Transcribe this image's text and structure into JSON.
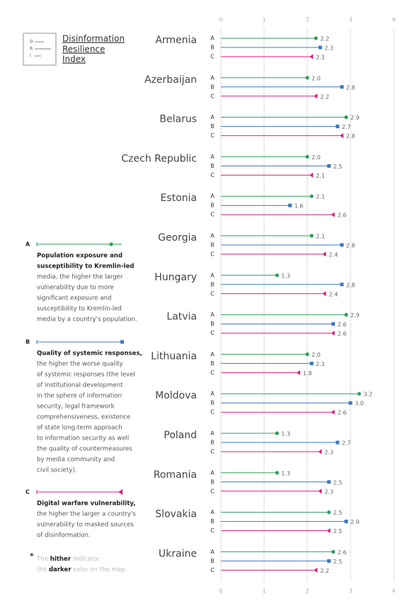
{
  "chart_data": {
    "type": "lollipop",
    "title": [
      "Disinformation",
      "Resilience",
      "Index"
    ],
    "logo_letters": [
      "D",
      "R",
      "I"
    ],
    "xlim": [
      0,
      4
    ],
    "xticks": [
      0,
      1,
      2,
      3,
      4
    ],
    "grid": true,
    "categories": [
      "Armenia",
      "Azerbaijan",
      "Belarus",
      "Czech Republic",
      "Estonia",
      "Georgia",
      "Hungary",
      "Latvia",
      "Lithuania",
      "Moldova",
      "Poland",
      "Romania",
      "Slovakia",
      "Ukraine"
    ],
    "series": [
      {
        "name": "A",
        "color": "#2e9e5b",
        "marker": "circle",
        "values": [
          2.2,
          2.0,
          2.9,
          2.0,
          2.1,
          2.1,
          1.3,
          2.9,
          2.0,
          3.2,
          1.3,
          1.3,
          2.5,
          2.6
        ],
        "value_labels": [
          "2.2",
          "2.0",
          "2.9",
          "2.0",
          "2.1",
          "2.1",
          "1.3",
          "2.9",
          "2.0",
          "3.2",
          "1.3",
          "1.3",
          "2.5",
          "2.6"
        ],
        "description_title": [
          "Population exposure and",
          "susceptibility to Kremlin-led"
        ],
        "description": [
          "media, the higher the larger",
          "vulnerability due to more",
          "significant exposure and",
          "susceptibility to Kremlin-led",
          "media by a country's population."
        ]
      },
      {
        "name": "B",
        "color": "#3a78c2",
        "marker": "square",
        "values": [
          2.3,
          2.8,
          2.7,
          2.5,
          1.6,
          2.8,
          2.8,
          2.6,
          2.1,
          3.0,
          2.7,
          2.5,
          2.9,
          2.5
        ],
        "value_labels": [
          "2.3",
          "2.8",
          "2.7",
          "2.5",
          "1.6",
          "2.8",
          "2.8",
          "2.6",
          "2.1",
          "3.0",
          "2.7",
          "2.5",
          "2.9",
          "2.5"
        ],
        "description_title": [
          "Quality of systemic responses,"
        ],
        "description": [
          "the higher the worse quality",
          "of systemic responses (the level",
          "of institutional development",
          "in the sphere of information",
          "security, legal framework",
          "comprehensiveness, existence",
          "of state long-term approach",
          "to information security as well",
          "the quality of countermeasures",
          "by media community and",
          "civil society)."
        ]
      },
      {
        "name": "C",
        "color": "#e0197d",
        "marker": "triangle-left",
        "values": [
          2.1,
          2.2,
          2.8,
          2.1,
          2.6,
          2.4,
          2.4,
          2.6,
          1.8,
          2.6,
          2.3,
          2.3,
          2.5,
          2.2
        ],
        "value_labels": [
          "2.1",
          "2.2",
          "2.8",
          "2.1",
          "2.6",
          "2.4",
          "2.4",
          "2.6",
          "1.8",
          "2.6",
          "2.3",
          "2.3",
          "2.5",
          "2.2"
        ],
        "description_title": [
          "Digital warfare vulnerability,"
        ],
        "description": [
          "the higher the larger a country's",
          "vulnerability to masked sources",
          "of disinformation."
        ]
      }
    ],
    "footnote": {
      "mark": "*",
      "line1": [
        "The",
        "hither",
        "indicator"
      ],
      "line2": [
        "the",
        "darker",
        "color on the map"
      ]
    }
  }
}
